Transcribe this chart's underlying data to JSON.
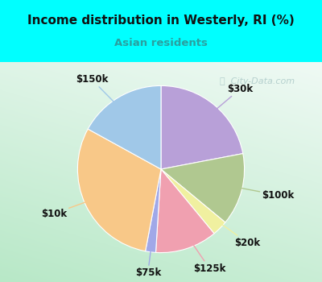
{
  "title": "Income distribution in Westerly, RI (%)",
  "subtitle": "Asian residents",
  "title_color": "#111111",
  "subtitle_color": "#2aa0a0",
  "bg_color": "#00ffff",
  "slices": [
    {
      "label": "$30k",
      "value": 22,
      "color": "#b8a0d8"
    },
    {
      "label": "$100k",
      "value": 14,
      "color": "#b0c890"
    },
    {
      "label": "$20k",
      "value": 3,
      "color": "#f0f0a0"
    },
    {
      "label": "$125k",
      "value": 12,
      "color": "#f0a0b0"
    },
    {
      "label": "$75k",
      "value": 2,
      "color": "#a0a8e8"
    },
    {
      "label": "$10k",
      "value": 30,
      "color": "#f8c888"
    },
    {
      "label": "$150k",
      "value": 17,
      "color": "#a0c8e8"
    }
  ],
  "label_fontsize": 8.5,
  "watermark": "City-Data.com",
  "watermark_color": "#a0c0c0",
  "label_color": "#111111"
}
